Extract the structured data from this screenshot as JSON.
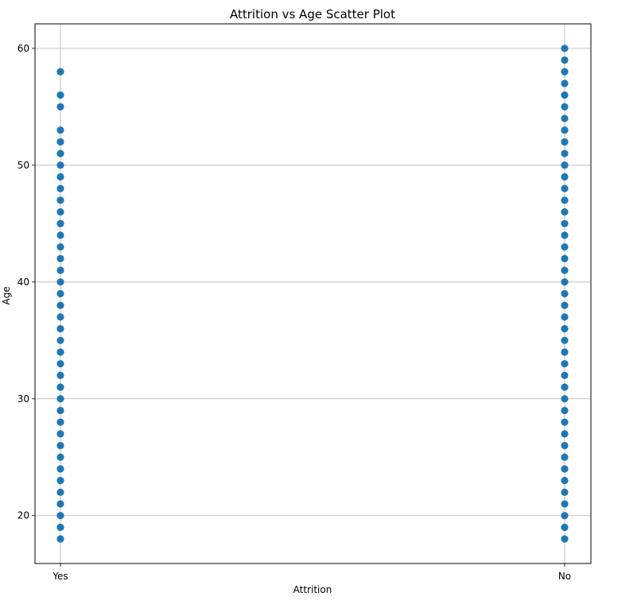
{
  "chart_data": {
    "type": "scatter",
    "title": "Attrition vs Age Scatter Plot",
    "xlabel": "Attrition",
    "ylabel": "Age",
    "categories": [
      "Yes",
      "No"
    ],
    "ylim": [
      15.9,
      62.1
    ],
    "yticks": [
      20,
      30,
      40,
      50,
      60
    ],
    "grid": true,
    "marker_color": "#1f77b4",
    "series": [
      {
        "category": "Yes",
        "values": [
          18,
          19,
          20,
          21,
          22,
          23,
          24,
          25,
          26,
          27,
          28,
          29,
          30,
          31,
          32,
          33,
          34,
          35,
          36,
          37,
          38,
          39,
          40,
          41,
          42,
          43,
          44,
          45,
          46,
          47,
          48,
          49,
          50,
          51,
          52,
          53,
          55,
          56,
          58
        ]
      },
      {
        "category": "No",
        "values": [
          18,
          19,
          20,
          21,
          22,
          23,
          24,
          25,
          26,
          27,
          28,
          29,
          30,
          31,
          32,
          33,
          34,
          35,
          36,
          37,
          38,
          39,
          40,
          41,
          42,
          43,
          44,
          45,
          46,
          47,
          48,
          49,
          50,
          51,
          52,
          53,
          54,
          55,
          56,
          57,
          58,
          59,
          60
        ]
      }
    ]
  }
}
